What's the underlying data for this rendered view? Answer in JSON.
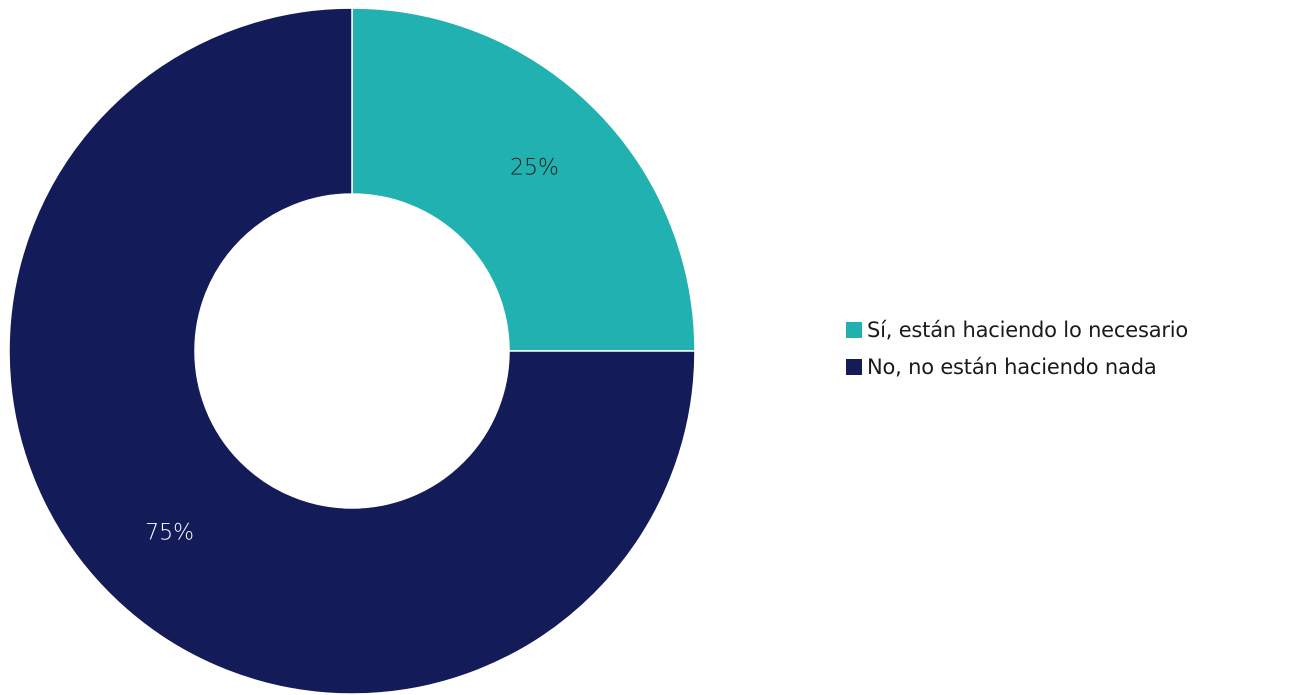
{
  "chart_data": {
    "type": "pie",
    "variant": "donut",
    "title": "",
    "slices": [
      {
        "label": "Sí, están haciendo lo necesario",
        "value": 25,
        "display": "25%",
        "color": "#20b1b0"
      },
      {
        "label": "No, no están haciendo nada",
        "value": 75,
        "display": "75%",
        "color": "#131b59"
      }
    ],
    "legend_placement": "right"
  },
  "colors": {
    "background": "#ffffff",
    "label_on_light": "#1a1a1a",
    "label_on_dark": "#ffffff"
  }
}
